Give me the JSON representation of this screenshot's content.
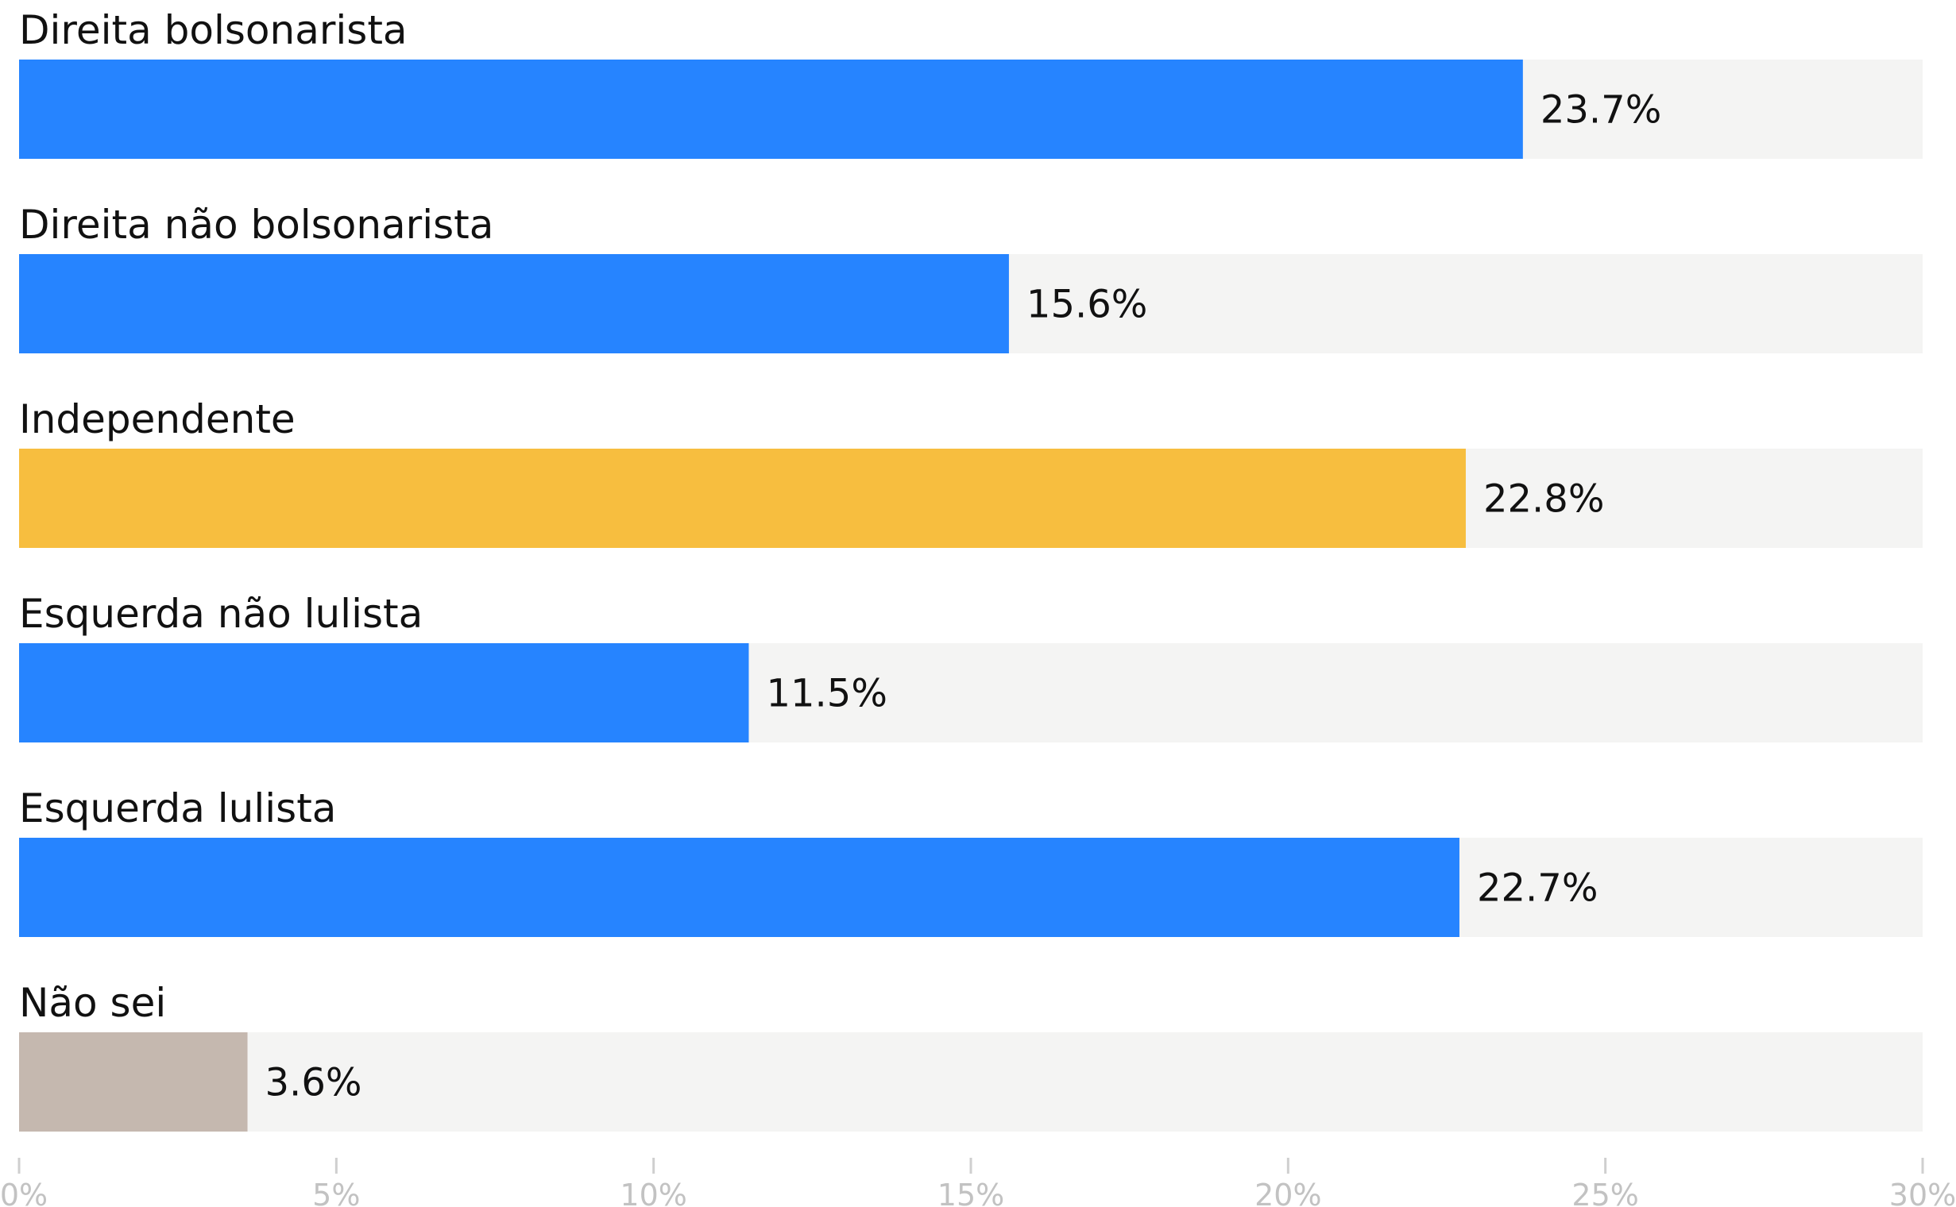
{
  "chart_data": {
    "type": "bar",
    "orientation": "horizontal",
    "title": "",
    "xlabel": "",
    "ylabel": "",
    "categories": [
      "Direita bolsonarista",
      "Direita não bolsonarista",
      "Independente",
      "Esquerda não lulista",
      "Esquerda lulista",
      "Não sei"
    ],
    "values": [
      23.7,
      15.6,
      22.8,
      11.5,
      22.7,
      3.6
    ],
    "value_labels": [
      "23.7%",
      "15.6%",
      "22.8%",
      "11.5%",
      "22.7%",
      "3.6%"
    ],
    "bar_colors": [
      "#2684FF",
      "#2684FF",
      "#F7BE3F",
      "#2684FF",
      "#2684FF",
      "#C5B8AF"
    ],
    "track_color": "#F4F4F3",
    "xlim": [
      0,
      30
    ],
    "ticks": [
      0,
      5,
      10,
      15,
      20,
      25,
      30
    ],
    "tick_labels": [
      "0%",
      "5%",
      "10%",
      "15%",
      "20%",
      "25%",
      "30%"
    ],
    "grid": false,
    "legend": "none"
  }
}
